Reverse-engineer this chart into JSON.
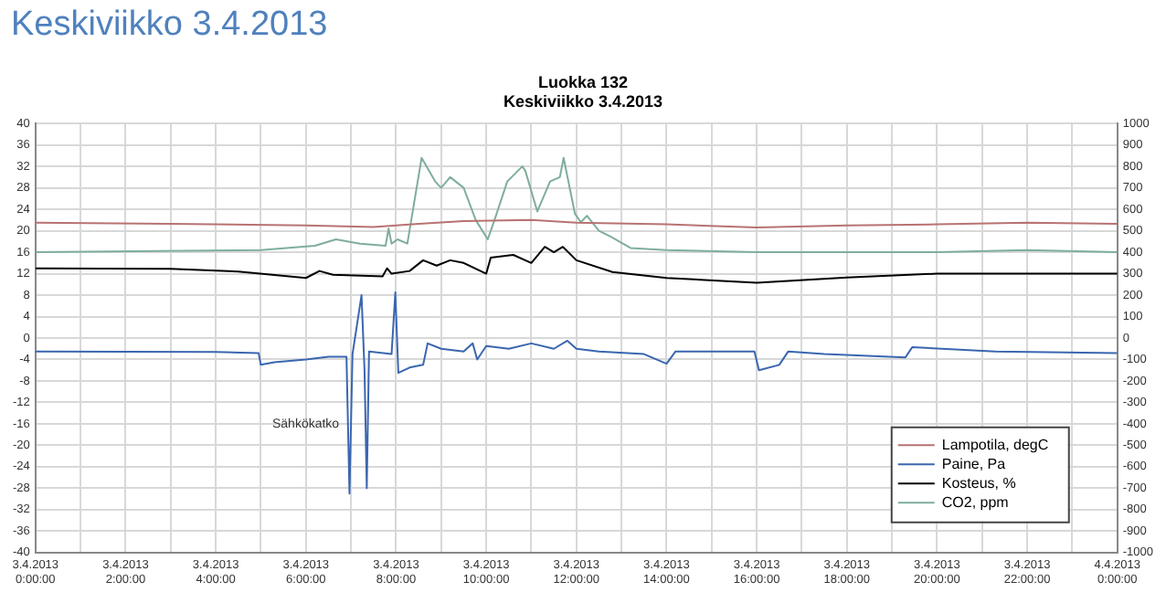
{
  "chart_data": {
    "type": "line",
    "title": "Luokka 132",
    "subtitle": "Keskiviikko 3.4.2013",
    "annotations": [
      "Keskiviikko 3.4.2013",
      "Sähkökatko"
    ],
    "xlim": [
      "2013-04-03T00:00",
      "2013-04-04T00:00"
    ],
    "xticks": [
      {
        "value": "2013-04-03T00:00",
        "label": "3.4.2013 0:00:00"
      },
      {
        "value": "2013-04-03T01:00",
        "label": null
      },
      {
        "value": "2013-04-03T02:00",
        "label": "3.4.2013 2:00:00"
      },
      {
        "value": "2013-04-03T03:00",
        "label": null
      },
      {
        "value": "2013-04-03T04:00",
        "label": "3.4.2013 4:00:00"
      },
      {
        "value": "2013-04-03T05:00",
        "label": null
      },
      {
        "value": "2013-04-03T06:00",
        "label": "3.4.2013 6:00:00"
      },
      {
        "value": "2013-04-03T07:00",
        "label": null
      },
      {
        "value": "2013-04-03T08:00",
        "label": "3.4.2013 8:00:00"
      },
      {
        "value": "2013-04-03T09:00",
        "label": null
      },
      {
        "value": "2013-04-03T10:00",
        "label": "3.4.2013 10:00:00"
      },
      {
        "value": "2013-04-03T11:00",
        "label": null
      },
      {
        "value": "2013-04-03T12:00",
        "label": "3.4.2013 12:00:00"
      },
      {
        "value": "2013-04-03T13:00",
        "label": null
      },
      {
        "value": "2013-04-03T14:00",
        "label": "3.4.2013 14:00:00"
      },
      {
        "value": "2013-04-03T15:00",
        "label": null
      },
      {
        "value": "2013-04-03T16:00",
        "label": "3.4.2013 16:00:00"
      },
      {
        "value": "2013-04-03T17:00",
        "label": null
      },
      {
        "value": "2013-04-03T18:00",
        "label": "3.4.2013 18:00:00"
      },
      {
        "value": "2013-04-03T19:00",
        "label": null
      },
      {
        "value": "2013-04-03T20:00",
        "label": "3.4.2013 20:00:00"
      },
      {
        "value": "2013-04-03T21:00",
        "label": null
      },
      {
        "value": "2013-04-03T22:00",
        "label": "3.4.2013 22:00:00"
      },
      {
        "value": "2013-04-03T23:00",
        "label": null
      },
      {
        "value": "2013-04-04T00:00",
        "label": "4.4.2013 0:00:00"
      }
    ],
    "ylim": [
      -40,
      40
    ],
    "yticks": [
      -40,
      -36,
      -32,
      -28,
      -24,
      -20,
      -16,
      -12,
      -8,
      -4,
      0,
      4,
      8,
      12,
      16,
      20,
      24,
      28,
      32,
      36,
      40
    ],
    "y2lim": [
      -1000,
      1000
    ],
    "y2ticks": [
      -1000,
      -900,
      -800,
      -700,
      -600,
      -500,
      -400,
      -300,
      -200,
      -100,
      0,
      100,
      200,
      300,
      400,
      500,
      600,
      700,
      800,
      900,
      1000
    ],
    "grid": true,
    "legend": "bottom right",
    "marker": "none",
    "series": [
      {
        "name": "Lampotila, degC",
        "color": "#b87272",
        "x": [
          "2013-04-03T00:00",
          "2013-04-03T03:00",
          "2013-04-03T06:00",
          "2013-04-03T07:30",
          "2013-04-03T08:30",
          "2013-04-03T09:30",
          "2013-04-03T11:00",
          "2013-04-03T12:00",
          "2013-04-03T14:00",
          "2013-04-03T16:00",
          "2013-04-03T18:00",
          "2013-04-03T20:00",
          "2013-04-03T22:00",
          "2013-04-04T00:00"
        ],
        "values": [
          21.5,
          21.3,
          21,
          20.7,
          21.3,
          21.8,
          22,
          21.5,
          21.2,
          20.6,
          21,
          21.2,
          21.5,
          21.3
        ]
      },
      {
        "name": "Paine, Pa",
        "color": "#3a66b0",
        "x": [
          "2013-04-03T00:00",
          "2013-04-03T04:00",
          "2013-04-03T04:57",
          "2013-04-03T05:00",
          "2013-04-03T05:18",
          "2013-04-03T06:00",
          "2013-04-03T06:30",
          "2013-04-03T06:54",
          "2013-04-03T06:58",
          "2013-04-03T07:02",
          "2013-04-03T07:14",
          "2013-04-03T07:18",
          "2013-04-03T07:21",
          "2013-04-03T07:24",
          "2013-04-03T07:54",
          "2013-04-03T07:59",
          "2013-04-03T08:03",
          "2013-04-03T08:18",
          "2013-04-03T08:36",
          "2013-04-03T08:42",
          "2013-04-03T09:00",
          "2013-04-03T09:30",
          "2013-04-03T09:42",
          "2013-04-03T09:48",
          "2013-04-03T10:00",
          "2013-04-03T10:30",
          "2013-04-03T11:00",
          "2013-04-03T11:30",
          "2013-04-03T11:48",
          "2013-04-03T12:00",
          "2013-04-03T12:30",
          "2013-04-03T13:30",
          "2013-04-03T14:00",
          "2013-04-03T14:12",
          "2013-04-03T15:57",
          "2013-04-03T16:03",
          "2013-04-03T16:30",
          "2013-04-03T16:42",
          "2013-04-03T17:30",
          "2013-04-03T19:18",
          "2013-04-03T19:27",
          "2013-04-03T21:18",
          "2013-04-04T00:00"
        ],
        "values": [
          -2.5,
          -2.6,
          -2.8,
          -5,
          -4.5,
          -4,
          -3.5,
          -3.5,
          -29,
          -3,
          8,
          -6,
          -28,
          -2.5,
          -3,
          8.5,
          -6.5,
          -5.5,
          -5,
          -1,
          -2,
          -2.5,
          -1,
          -4,
          -1.5,
          -2,
          -1,
          -2,
          -0.5,
          -2,
          -2.5,
          -3,
          -4.8,
          -2.5,
          -2.5,
          -6,
          -5,
          -2.5,
          -3,
          -3.6,
          -1.7,
          -2.5,
          -2.8
        ]
      },
      {
        "name": "Kosteus, %",
        "color": "#000000",
        "x": [
          "2013-04-03T00:00",
          "2013-04-03T03:00",
          "2013-04-03T04:30",
          "2013-04-03T06:00",
          "2013-04-03T06:18",
          "2013-04-03T06:36",
          "2013-04-03T07:42",
          "2013-04-03T07:48",
          "2013-04-03T07:54",
          "2013-04-03T08:18",
          "2013-04-03T08:36",
          "2013-04-03T08:54",
          "2013-04-03T09:12",
          "2013-04-03T09:30",
          "2013-04-03T10:00",
          "2013-04-03T10:06",
          "2013-04-03T10:36",
          "2013-04-03T11:00",
          "2013-04-03T11:18",
          "2013-04-03T11:30",
          "2013-04-03T11:42",
          "2013-04-03T12:00",
          "2013-04-03T12:48",
          "2013-04-03T14:00",
          "2013-04-03T16:00",
          "2013-04-03T18:00",
          "2013-04-03T20:00",
          "2013-04-04T00:00"
        ],
        "values": [
          13,
          12.9,
          12.4,
          11.2,
          12.5,
          11.8,
          11.5,
          13,
          12,
          12.5,
          14.5,
          13.5,
          14.5,
          14,
          12,
          15,
          15.5,
          14,
          17,
          16,
          17,
          14.5,
          12.3,
          11.2,
          10.3,
          11.3,
          12,
          12
        ]
      },
      {
        "name": "CO2, ppm",
        "color": "#7fae9a",
        "axis": "y2",
        "x": [
          "2013-04-03T00:00",
          "2013-04-03T05:00",
          "2013-04-03T06:12",
          "2013-04-03T06:40",
          "2013-04-03T07:12",
          "2013-04-03T07:46",
          "2013-04-03T07:50",
          "2013-04-03T07:54",
          "2013-04-03T08:02",
          "2013-04-03T08:15",
          "2013-04-03T08:34",
          "2013-04-03T08:52",
          "2013-04-03T09:00",
          "2013-04-03T09:12",
          "2013-04-03T09:30",
          "2013-04-03T09:46",
          "2013-04-03T10:02",
          "2013-04-03T10:11",
          "2013-04-03T10:28",
          "2013-04-03T10:48",
          "2013-04-03T10:52",
          "2013-04-03T11:08",
          "2013-04-03T11:25",
          "2013-04-03T11:38",
          "2013-04-03T11:43",
          "2013-04-03T11:58",
          "2013-04-03T12:06",
          "2013-04-03T12:14",
          "2013-04-03T12:30",
          "2013-04-03T12:47",
          "2013-04-03T13:12",
          "2013-04-03T14:00",
          "2013-04-03T16:00",
          "2013-04-03T18:00",
          "2013-04-03T20:00",
          "2013-04-03T22:00",
          "2013-04-04T00:00"
        ],
        "values": [
          400,
          410,
          430,
          460,
          440,
          430,
          510,
          440,
          460,
          440,
          840,
          730,
          700,
          750,
          700,
          550,
          460,
          550,
          730,
          800,
          780,
          590,
          730,
          750,
          840,
          580,
          540,
          570,
          500,
          470,
          420,
          410,
          400,
          400,
          400,
          410,
          400
        ]
      }
    ]
  }
}
